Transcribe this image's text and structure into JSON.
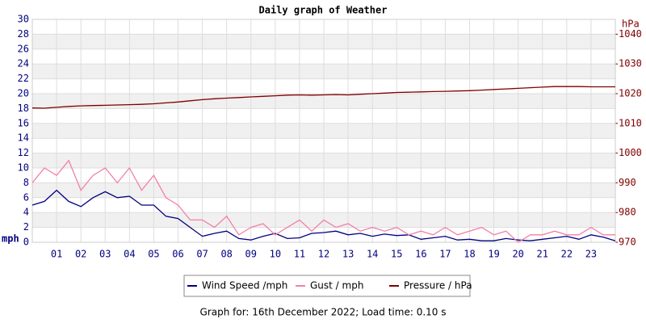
{
  "chart_data": {
    "type": "line",
    "title": "Daily graph of Weather",
    "ylabel": "mph",
    "y2label": "hPa",
    "x": [
      0,
      0.5,
      1,
      1.5,
      2,
      2.5,
      3,
      3.5,
      4,
      4.5,
      5,
      5.5,
      6,
      6.5,
      7,
      7.5,
      8,
      8.5,
      9,
      9.5,
      10,
      10.5,
      11,
      11.5,
      12,
      12.5,
      13,
      13.5,
      14,
      14.5,
      15,
      15.5,
      16,
      16.5,
      17,
      17.5,
      18,
      18.5,
      19,
      19.5,
      20,
      20.5,
      21,
      21.5,
      22,
      22.5,
      23,
      23.5,
      24
    ],
    "xlim": [
      0,
      24
    ],
    "xticks": [
      {
        "value": 1,
        "label": "01"
      },
      {
        "value": 2,
        "label": "02"
      },
      {
        "value": 3,
        "label": "03"
      },
      {
        "value": 4,
        "label": "04"
      },
      {
        "value": 5,
        "label": "05"
      },
      {
        "value": 6,
        "label": "06"
      },
      {
        "value": 7,
        "label": "07"
      },
      {
        "value": 8,
        "label": "08"
      },
      {
        "value": 9,
        "label": "09"
      },
      10,
      11,
      12,
      13,
      14,
      15,
      16,
      17,
      18,
      19,
      20,
      21,
      22,
      23
    ],
    "ylim": [
      0,
      30
    ],
    "yticks": [
      0,
      2,
      4,
      6,
      8,
      10,
      12,
      14,
      16,
      18,
      20,
      22,
      24,
      26,
      28,
      30
    ],
    "y2lim": [
      970,
      1045
    ],
    "y2ticks": [
      970,
      980,
      990,
      1000,
      1010,
      1020,
      1030,
      1040
    ],
    "grid": true,
    "series": [
      {
        "name": "Wind Speed /mph",
        "color": "#000080",
        "values": [
          5,
          5.5,
          7,
          5.5,
          4.8,
          6,
          6.8,
          6,
          6.2,
          5,
          5,
          3.5,
          3.2,
          2,
          0.8,
          1.2,
          1.5,
          0.5,
          0.3,
          0.8,
          1.2,
          0.5,
          0.6,
          1.2,
          1.3,
          1.5,
          1,
          1.2,
          0.8,
          1.1,
          0.9,
          1,
          0.4,
          0.6,
          0.8,
          0.3,
          0.4,
          0.2,
          0.2,
          0.5,
          0.3,
          0.2,
          0.4,
          0.6,
          0.8,
          0.4,
          1,
          0.7,
          0.2
        ]
      },
      {
        "name": "Gust / mph",
        "color": "#f47fa6",
        "values": [
          8,
          10,
          9,
          11,
          7,
          9,
          10,
          8,
          10,
          7,
          9,
          6,
          5,
          3,
          3,
          2,
          3.5,
          1,
          2,
          2.5,
          1,
          2,
          3,
          1.5,
          3,
          2,
          2.5,
          1.5,
          2,
          1.5,
          2,
          1,
          1.5,
          1,
          2,
          1,
          1.5,
          2,
          1,
          1.5,
          0,
          1,
          1,
          1.5,
          1,
          1,
          2,
          1,
          1
        ]
      },
      {
        "name": "Pressure / hPa",
        "color": "#800000",
        "axis": "y2",
        "values": [
          1015.2,
          1015.1,
          1015.4,
          1015.7,
          1015.9,
          1016.0,
          1016.1,
          1016.2,
          1016.3,
          1016.4,
          1016.6,
          1016.9,
          1017.2,
          1017.6,
          1018.0,
          1018.3,
          1018.5,
          1018.7,
          1018.9,
          1019.1,
          1019.3,
          1019.5,
          1019.6,
          1019.5,
          1019.6,
          1019.7,
          1019.6,
          1019.8,
          1020.0,
          1020.2,
          1020.4,
          1020.5,
          1020.6,
          1020.7,
          1020.8,
          1020.9,
          1021.0,
          1021.2,
          1021.4,
          1021.6,
          1021.8,
          1022.0,
          1022.2,
          1022.4,
          1022.4,
          1022.4,
          1022.3,
          1022.3,
          1022.3
        ]
      }
    ]
  },
  "footer": "Graph for: 16th December 2022; Load time: 0.10 s"
}
